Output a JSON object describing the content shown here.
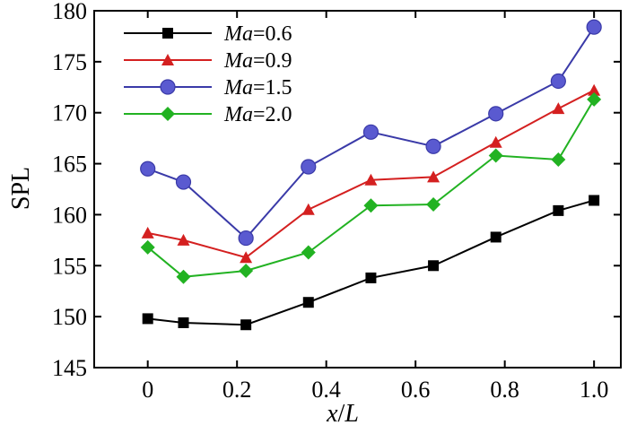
{
  "chart_data": {
    "type": "line",
    "xlabel": {
      "italic": "x",
      "slash": "/",
      "italic2": "L"
    },
    "ylabel": "SPL",
    "xlim": [
      -0.12,
      1.06
    ],
    "ylim": [
      145,
      180
    ],
    "xticks": [
      0,
      0.2,
      0.4,
      0.6,
      0.8,
      1.0
    ],
    "xtick_labels": [
      "0",
      "0.2",
      "0.4",
      "0.6",
      "0.8",
      "1.0"
    ],
    "yticks": [
      145,
      150,
      155,
      160,
      165,
      170,
      175,
      180
    ],
    "ytick_labels": [
      "145",
      "150",
      "155",
      "160",
      "165",
      "170",
      "175",
      "180"
    ],
    "grid": false,
    "legend_position": "top-left",
    "x": [
      0,
      0.08,
      0.22,
      0.36,
      0.5,
      0.64,
      0.78,
      0.92,
      1.0
    ],
    "series": [
      {
        "name_var": "Ma",
        "name_value": "=0.6",
        "color": "#000000",
        "marker": "square",
        "values": [
          149.8,
          149.4,
          149.2,
          151.4,
          153.8,
          155.0,
          157.8,
          160.4,
          161.4
        ]
      },
      {
        "name_var": "Ma",
        "name_value": "=0.9",
        "color": "#d42020",
        "marker": "triangle",
        "values": [
          158.2,
          157.5,
          155.8,
          160.5,
          163.4,
          163.7,
          167.1,
          170.4,
          172.2
        ]
      },
      {
        "name_var": "Ma",
        "name_value": "=1.5",
        "color": "#3a3aa8",
        "marker": "circle",
        "values": [
          164.5,
          163.2,
          157.7,
          164.7,
          168.1,
          166.7,
          169.9,
          173.1,
          178.4
        ]
      },
      {
        "name_var": "Ma",
        "name_value": "=2.0",
        "color": "#22b222",
        "marker": "diamond",
        "values": [
          156.8,
          153.9,
          154.5,
          156.3,
          160.9,
          161.0,
          165.8,
          165.4,
          171.3
        ]
      }
    ]
  }
}
